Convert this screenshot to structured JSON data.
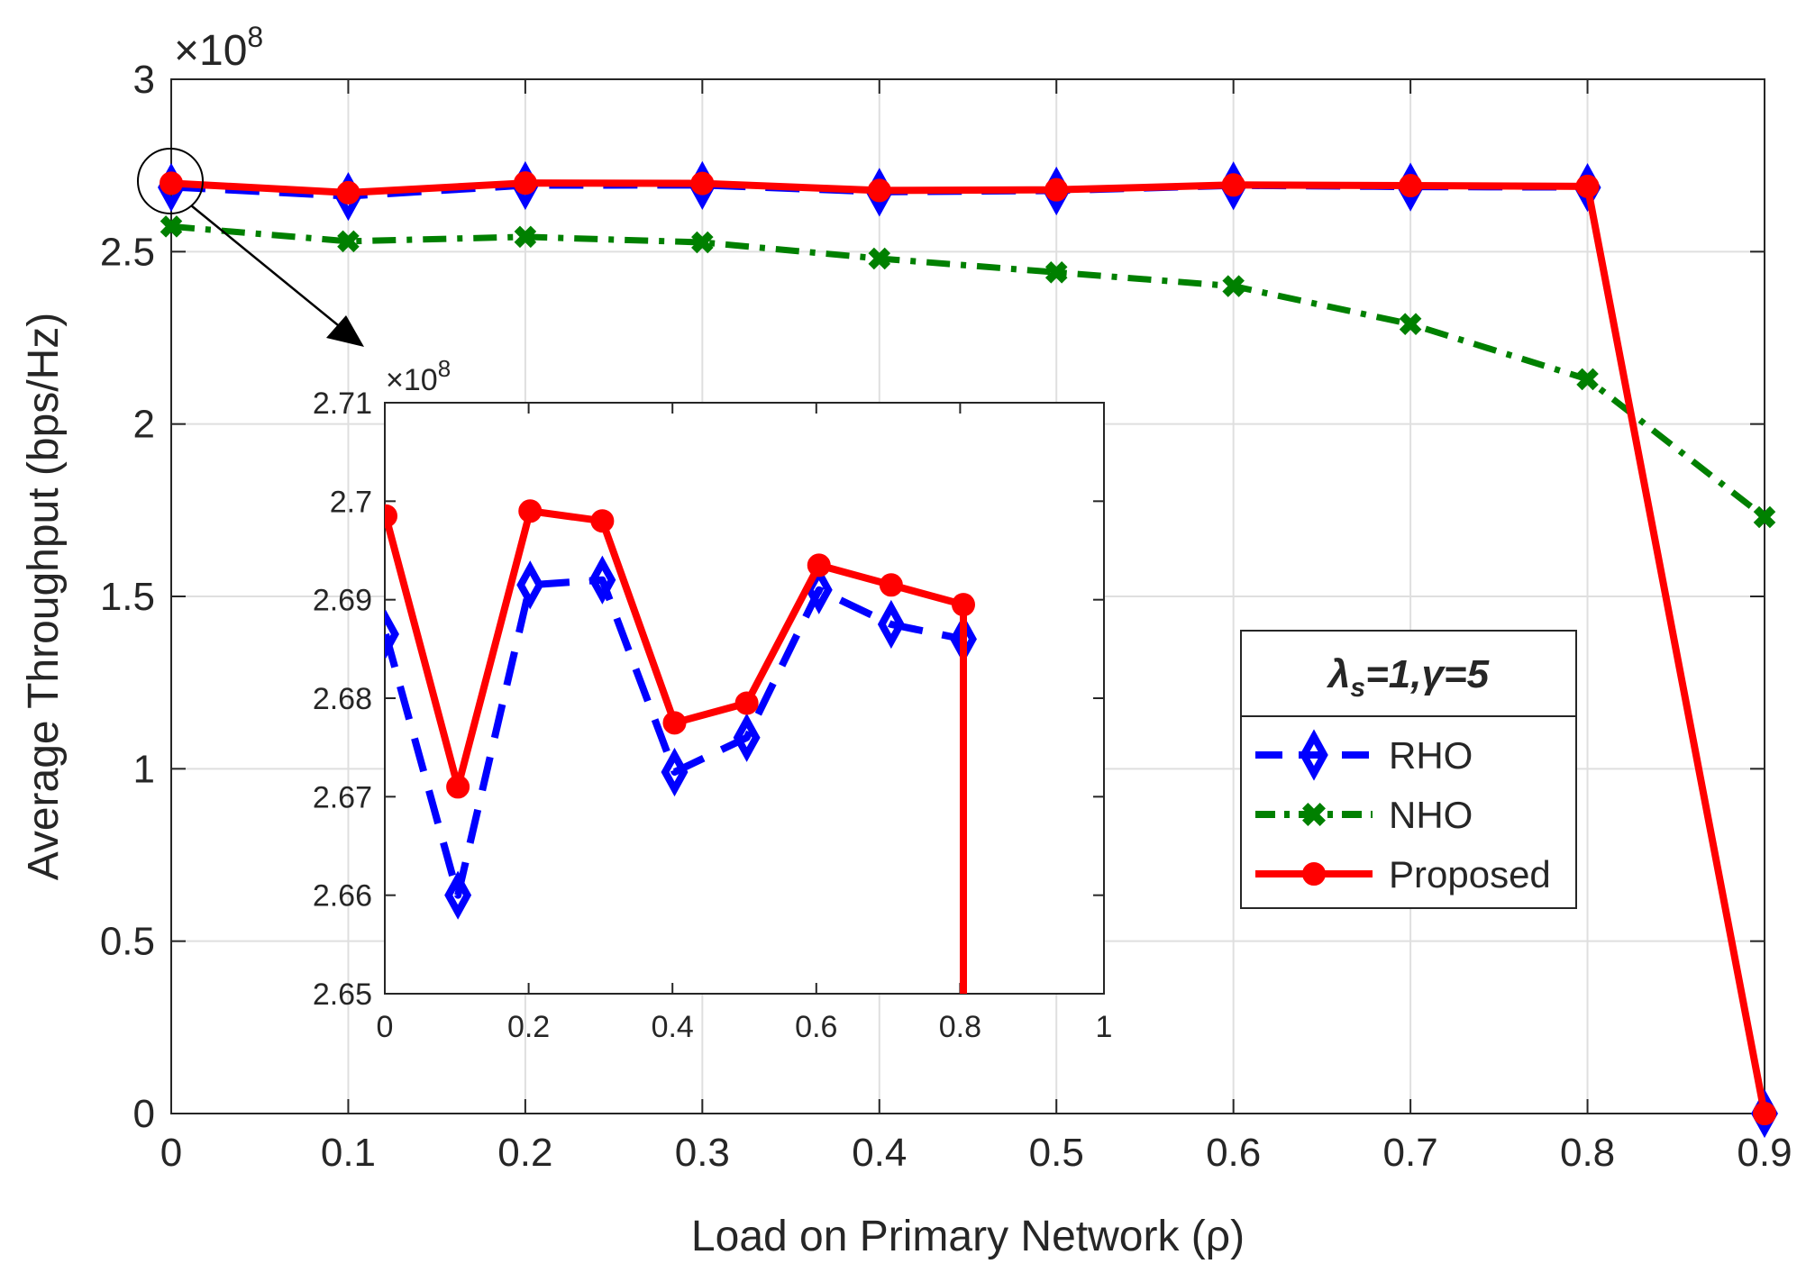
{
  "chart_data": {
    "type": "line",
    "xlabel": "Load on Primary Network (ρ)",
    "ylabel": "Average Throughput (bps/Hz)",
    "exponent_label": "×10",
    "exponent_power": "8",
    "x": [
      0,
      0.1,
      0.2,
      0.3,
      0.4,
      0.5,
      0.6,
      0.7,
      0.8,
      0.9
    ],
    "xlim": [
      0,
      0.9
    ],
    "ylim": [
      0,
      3
    ],
    "xticks": [
      "0",
      "0.1",
      "0.2",
      "0.3",
      "0.4",
      "0.5",
      "0.6",
      "0.7",
      "0.8",
      "0.9"
    ],
    "yticks": [
      "0",
      "0.5",
      "1",
      "1.5",
      "2",
      "2.5",
      "3"
    ],
    "grid": true,
    "series": [
      {
        "name": "RHO",
        "color": "#0000ff",
        "style": "dashed",
        "marker": "diamond",
        "values": [
          2.6865,
          2.66,
          2.6915,
          2.692,
          2.6725,
          2.676,
          2.691,
          2.6875,
          2.686,
          0
        ]
      },
      {
        "name": "NHO",
        "color": "#008000",
        "style": "dashdot",
        "marker": "x",
        "values": [
          2.573,
          2.53,
          2.543,
          2.527,
          2.48,
          2.44,
          2.4,
          2.29,
          2.13,
          1.73
        ]
      },
      {
        "name": "Proposed",
        "color": "#ff0000",
        "style": "solid",
        "marker": "circle",
        "values": [
          2.6985,
          2.671,
          2.699,
          2.698,
          2.6775,
          2.6795,
          2.6935,
          2.6915,
          2.6895,
          0
        ]
      }
    ],
    "legend": {
      "title_symbol": "λ",
      "title_subscript": "s",
      "title_rest": "=1,γ=5",
      "position": "right-middle"
    },
    "inset": {
      "x": [
        0,
        0.1,
        0.2,
        0.3,
        0.4,
        0.5,
        0.6,
        0.7,
        0.8
      ],
      "xlim": [
        0,
        1
      ],
      "ylim": [
        2.65,
        2.71
      ],
      "xticks": [
        "0",
        "0.2",
        "0.4",
        "0.6",
        "0.8",
        "1"
      ],
      "yticks": [
        "2.65",
        "2.66",
        "2.67",
        "2.68",
        "2.69",
        "2.7",
        "2.71"
      ],
      "exponent_label": "×10",
      "exponent_power": "8",
      "grid": false,
      "series": [
        {
          "name": "RHO",
          "values": [
            2.6865,
            2.66,
            2.6915,
            2.692,
            2.6725,
            2.676,
            2.691,
            2.6875,
            2.686
          ]
        },
        {
          "name": "Proposed",
          "values": [
            2.6985,
            2.671,
            2.699,
            2.698,
            2.6775,
            2.6795,
            2.6935,
            2.6915,
            2.6895
          ]
        }
      ],
      "proposed_drop_at_x": 0.8
    },
    "annotation": "circle at x=0 (zoom region) with arrow pointing to inset"
  }
}
